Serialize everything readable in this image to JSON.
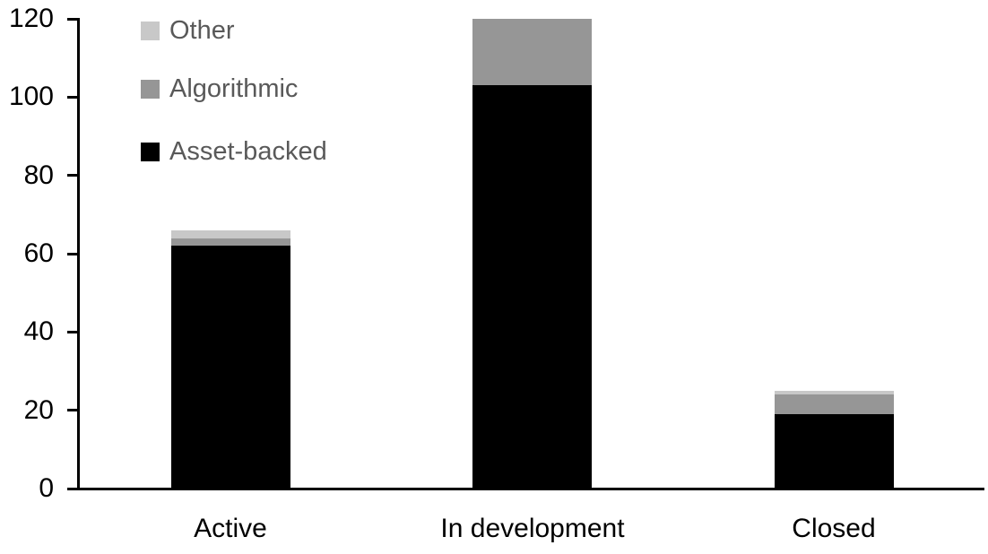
{
  "chart_data": {
    "type": "bar",
    "stacked": true,
    "title": "",
    "xlabel": "",
    "ylabel": "",
    "categories": [
      "Active",
      "In development",
      "Closed"
    ],
    "series": [
      {
        "name": "Asset-backed",
        "color": "#000000",
        "values": [
          62,
          103,
          19
        ]
      },
      {
        "name": "Algorithmic",
        "color": "#969696",
        "values": [
          2,
          17,
          5
        ]
      },
      {
        "name": "Other",
        "color": "#c8c8c8",
        "values": [
          2,
          0,
          1
        ]
      }
    ],
    "stack_order_bottom_to_top": [
      "Asset-backed",
      "Algorithmic",
      "Other"
    ],
    "totals": [
      66,
      120,
      25
    ],
    "ylim": [
      0,
      120
    ],
    "yticks": [
      0,
      20,
      40,
      60,
      80,
      100,
      120
    ],
    "grid": false,
    "legend": {
      "position": "top-left",
      "order_top_to_bottom": [
        "Other",
        "Algorithmic",
        "Asset-backed"
      ],
      "text_color": "#595959"
    },
    "colors": {
      "axis": "#000000",
      "tick_label": "#000000",
      "background": "#ffffff"
    }
  }
}
